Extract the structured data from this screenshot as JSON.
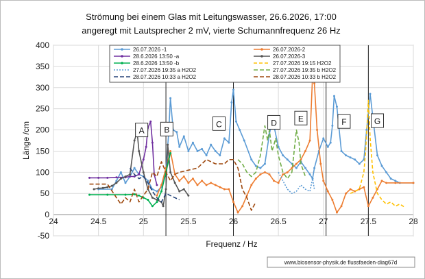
{
  "chart_data": {
    "type": "line",
    "title_line1": "Strömung bei einem Glas mit  Leitungswasser, 26.6.2026, 17:00",
    "title_line2": "angeregt mit Lautsprecher 2 mV,  vierte Schumannfrequenz  26 Hz",
    "xlabel": "Frequenz / Hz",
    "ylabel": "Länge /cm",
    "xlim": [
      24,
      28
    ],
    "ylim": [
      -50,
      400
    ],
    "xticks": [
      "24",
      "24.5",
      "25",
      "25.5",
      "26",
      "26.5",
      "27",
      "27.5",
      "28"
    ],
    "yticks": [
      "-50",
      "0",
      "50",
      "100",
      "150",
      "200",
      "250",
      "300",
      "350",
      "400"
    ],
    "grid": true,
    "legend_position": "top-inside",
    "credit": "www.biosensor-physik.de  flussfaeden-diag67d",
    "annotations": [
      {
        "text": "A",
        "x": 24.98,
        "y": 200
      },
      {
        "text": "B",
        "x": 25.26,
        "y": 202
      },
      {
        "text": "C",
        "x": 25.84,
        "y": 215
      },
      {
        "text": "D",
        "x": 26.45,
        "y": 218
      },
      {
        "text": "E",
        "x": 26.75,
        "y": 228
      },
      {
        "text": "F",
        "x": 27.23,
        "y": 220
      },
      {
        "text": "G",
        "x": 27.6,
        "y": 222
      }
    ],
    "vlines": [
      25.25,
      26,
      27.03,
      27.5
    ],
    "series": [
      {
        "name": "26.07.2026 -1",
        "color": "#5b9bd5",
        "dash": "",
        "marker": "dot",
        "points": [
          [
            24.5,
            60
          ],
          [
            24.65,
            60
          ],
          [
            24.7,
            80
          ],
          [
            24.75,
            100
          ],
          [
            24.8,
            75
          ],
          [
            24.85,
            90
          ],
          [
            24.9,
            110
          ],
          [
            24.95,
            95
          ],
          [
            25.0,
            90
          ],
          [
            25.05,
            80
          ],
          [
            25.1,
            60
          ],
          [
            25.15,
            55
          ],
          [
            25.2,
            65
          ],
          [
            25.25,
            110
          ],
          [
            25.28,
            190
          ],
          [
            25.3,
            275
          ],
          [
            25.33,
            200
          ],
          [
            25.37,
            195
          ],
          [
            25.4,
            160
          ],
          [
            25.45,
            185
          ],
          [
            25.5,
            150
          ],
          [
            25.55,
            170
          ],
          [
            25.6,
            150
          ],
          [
            25.65,
            155
          ],
          [
            25.7,
            140
          ],
          [
            25.75,
            165
          ],
          [
            25.8,
            150
          ],
          [
            25.85,
            140
          ],
          [
            25.9,
            180
          ],
          [
            25.95,
            170
          ],
          [
            25.98,
            265
          ],
          [
            26.0,
            295
          ],
          [
            26.03,
            220
          ],
          [
            26.07,
            200
          ],
          [
            26.12,
            175
          ],
          [
            26.2,
            130
          ],
          [
            26.25,
            115
          ],
          [
            26.3,
            110
          ],
          [
            26.35,
            120
          ],
          [
            26.4,
            190
          ],
          [
            26.43,
            220
          ],
          [
            26.45,
            210
          ],
          [
            26.5,
            160
          ],
          [
            26.55,
            140
          ],
          [
            26.6,
            130
          ],
          [
            26.65,
            120
          ],
          [
            26.7,
            110
          ],
          [
            26.75,
            125
          ],
          [
            26.8,
            110
          ],
          [
            26.85,
            95
          ],
          [
            26.88,
            85
          ],
          [
            26.9,
            110
          ],
          [
            26.95,
            150
          ],
          [
            27.0,
            180
          ],
          [
            27.05,
            160
          ],
          [
            27.08,
            170
          ],
          [
            27.1,
            210
          ],
          [
            27.12,
            280
          ],
          [
            27.15,
            255
          ],
          [
            27.2,
            150
          ],
          [
            27.25,
            140
          ],
          [
            27.3,
            135
          ],
          [
            27.35,
            130
          ],
          [
            27.4,
            120
          ],
          [
            27.45,
            130
          ],
          [
            27.48,
            200
          ],
          [
            27.52,
            285
          ],
          [
            27.55,
            230
          ],
          [
            27.6,
            140
          ],
          [
            27.65,
            115
          ],
          [
            27.7,
            100
          ],
          [
            27.75,
            85
          ],
          [
            27.8,
            80
          ],
          [
            27.85,
            75
          ],
          [
            28.0,
            75
          ]
        ]
      },
      {
        "name": "26.07.2026-2",
        "color": "#ed7d31",
        "dash": "",
        "marker": "dot",
        "points": [
          [
            25.15,
            45
          ],
          [
            25.2,
            70
          ],
          [
            25.25,
            110
          ],
          [
            25.3,
            150
          ],
          [
            25.35,
            95
          ],
          [
            25.4,
            80
          ],
          [
            25.45,
            90
          ],
          [
            25.5,
            75
          ],
          [
            25.55,
            85
          ],
          [
            25.6,
            70
          ],
          [
            25.65,
            80
          ],
          [
            25.7,
            70
          ],
          [
            25.75,
            75
          ],
          [
            25.8,
            70
          ],
          [
            25.85,
            65
          ],
          [
            25.9,
            60
          ],
          [
            25.95,
            60
          ],
          [
            26.0,
            30
          ],
          [
            26.05,
            5
          ],
          [
            26.1,
            20
          ],
          [
            26.15,
            45
          ],
          [
            26.2,
            70
          ],
          [
            26.25,
            85
          ],
          [
            26.3,
            95
          ],
          [
            26.35,
            100
          ],
          [
            26.4,
            95
          ],
          [
            26.45,
            80
          ],
          [
            26.5,
            75
          ],
          [
            26.55,
            95
          ],
          [
            26.6,
            100
          ],
          [
            26.65,
            110
          ],
          [
            26.7,
            120
          ],
          [
            26.75,
            130
          ],
          [
            26.8,
            150
          ],
          [
            26.85,
            175
          ],
          [
            26.88,
            330
          ],
          [
            26.9,
            310
          ],
          [
            26.93,
            200
          ],
          [
            26.97,
            120
          ],
          [
            27.0,
            80
          ],
          [
            27.05,
            55
          ],
          [
            27.1,
            35
          ],
          [
            27.15,
            5
          ],
          [
            27.2,
            20
          ],
          [
            27.25,
            50
          ],
          [
            27.3,
            60
          ],
          [
            27.35,
            55
          ],
          [
            27.4,
            60
          ],
          [
            27.45,
            65
          ],
          [
            27.5,
            20
          ],
          [
            27.55,
            40
          ],
          [
            27.6,
            60
          ],
          [
            27.65,
            80
          ],
          [
            27.7,
            75
          ],
          [
            27.8,
            75
          ],
          [
            28.0,
            75
          ]
        ]
      },
      {
        "name": "28.6.2026 13:50 -a",
        "color": "#7030a0",
        "dash": "",
        "marker": "dot",
        "points": [
          [
            24.4,
            87
          ],
          [
            24.5,
            87
          ],
          [
            24.6,
            87
          ],
          [
            24.7,
            88
          ],
          [
            24.8,
            88
          ],
          [
            24.85,
            90
          ],
          [
            24.9,
            90
          ],
          [
            24.95,
            95
          ],
          [
            25.0,
            130
          ],
          [
            25.03,
            160
          ],
          [
            25.05,
            205
          ],
          [
            25.08,
            220
          ],
          [
            25.1,
            170
          ],
          [
            25.12,
            95
          ],
          [
            25.15,
            70
          ]
        ]
      },
      {
        "name": "26.07.2026-3",
        "color": "#555555",
        "dash": "",
        "marker": "dot",
        "points": [
          [
            24.45,
            60
          ],
          [
            24.5,
            62
          ],
          [
            24.55,
            63
          ],
          [
            24.6,
            65
          ],
          [
            24.65,
            68
          ],
          [
            24.7,
            75
          ],
          [
            24.75,
            85
          ],
          [
            24.8,
            90
          ],
          [
            24.85,
            95
          ],
          [
            24.9,
            175
          ],
          [
            24.93,
            195
          ],
          [
            24.95,
            150
          ],
          [
            25.0,
            100
          ],
          [
            25.05,
            60
          ],
          [
            25.1,
            40
          ],
          [
            25.15,
            35
          ],
          [
            25.2,
            30
          ],
          [
            25.22,
            20
          ],
          [
            25.25,
            60
          ],
          [
            25.27,
            165
          ],
          [
            25.3,
            100
          ],
          [
            25.35,
            75
          ],
          [
            25.4,
            55
          ],
          [
            25.45,
            60
          ],
          [
            25.5,
            45
          ]
        ]
      },
      {
        "name": "28.6.2026 13:50 -b",
        "color": "#00b050",
        "dash": "",
        "marker": "dot",
        "points": [
          [
            24.4,
            47
          ],
          [
            24.6,
            47
          ],
          [
            24.8,
            47
          ],
          [
            24.9,
            48
          ],
          [
            24.95,
            45
          ],
          [
            25.0,
            40
          ],
          [
            25.05,
            35
          ],
          [
            25.1,
            20
          ],
          [
            25.15,
            30
          ],
          [
            25.2,
            55
          ],
          [
            25.25,
            100
          ],
          [
            25.3,
            145
          ]
        ]
      },
      {
        "name": "27.07.2026  19:15 H2O2",
        "color": "#ffc000",
        "dash": "5,3",
        "marker": "",
        "points": [
          [
            27.3,
            50
          ],
          [
            27.35,
            55
          ],
          [
            27.4,
            60
          ],
          [
            27.45,
            100
          ],
          [
            27.47,
            150
          ],
          [
            27.5,
            270
          ],
          [
            27.52,
            180
          ],
          [
            27.55,
            100
          ],
          [
            27.6,
            50
          ],
          [
            27.65,
            35
          ],
          [
            27.7,
            25
          ],
          [
            27.75,
            30
          ],
          [
            27.8,
            20
          ],
          [
            27.85,
            25
          ],
          [
            27.9,
            18
          ]
        ]
      },
      {
        "name": "27.07.2026  19:35 a H2O2",
        "color": "#5b9bd5",
        "dash": "2,2",
        "marker": "",
        "points": [
          [
            26.5,
            100
          ],
          [
            26.55,
            80
          ],
          [
            26.6,
            60
          ],
          [
            26.65,
            50
          ],
          [
            26.7,
            55
          ],
          [
            26.75,
            70
          ],
          [
            26.8,
            60
          ],
          [
            26.85,
            55
          ],
          [
            26.88,
            85
          ],
          [
            26.9,
            60
          ]
        ]
      },
      {
        "name": "27.07.2026  19:35 b H2O2",
        "color": "#70ad47",
        "dash": "6,3",
        "marker": "",
        "points": [
          [
            26.05,
            130
          ],
          [
            26.1,
            120
          ],
          [
            26.15,
            100
          ],
          [
            26.2,
            90
          ],
          [
            26.25,
            100
          ],
          [
            26.3,
            140
          ],
          [
            26.35,
            210
          ],
          [
            26.38,
            175
          ],
          [
            26.4,
            200
          ],
          [
            26.43,
            150
          ],
          [
            26.47,
            180
          ],
          [
            26.5,
            140
          ],
          [
            26.55,
            100
          ],
          [
            26.6,
            85
          ],
          [
            26.65,
            100
          ],
          [
            26.7,
            200
          ],
          [
            26.73,
            170
          ],
          [
            26.75,
            120
          ],
          [
            26.8,
            90
          ]
        ]
      },
      {
        "name": "28.07.2026  10:33 a  H2O2",
        "color": "#264478",
        "dash": "6,3",
        "marker": "",
        "points": [
          [
            24.85,
            110
          ],
          [
            24.9,
            95
          ],
          [
            24.95,
            85
          ],
          [
            25.0,
            90
          ],
          [
            25.05,
            75
          ],
          [
            25.1,
            55
          ],
          [
            25.15,
            40
          ],
          [
            25.2,
            30
          ],
          [
            25.25,
            50
          ],
          [
            25.3,
            45
          ],
          [
            25.35,
            40
          ],
          [
            25.4,
            35
          ]
        ]
      },
      {
        "name": "28.07.2026  10:33 b  H2O2",
        "color": "#9e480e",
        "dash": "6,3",
        "marker": "",
        "points": [
          [
            24.4,
            72
          ],
          [
            24.6,
            72
          ],
          [
            24.7,
            40
          ],
          [
            24.75,
            25
          ],
          [
            24.8,
            40
          ],
          [
            24.85,
            30
          ],
          [
            24.9,
            60
          ],
          [
            24.95,
            30
          ],
          [
            25.0,
            45
          ],
          [
            25.05,
            60
          ],
          [
            25.1,
            100
          ],
          [
            25.15,
            90
          ],
          [
            25.2,
            125
          ],
          [
            25.25,
            100
          ],
          [
            25.3,
            80
          ],
          [
            25.35,
            95
          ],
          [
            25.4,
            100
          ],
          [
            25.5,
            105
          ],
          [
            25.6,
            110
          ],
          [
            25.7,
            130
          ],
          [
            25.8,
            120
          ],
          [
            25.9,
            120
          ],
          [
            25.95,
            130
          ],
          [
            26.0,
            130
          ],
          [
            26.05,
            110
          ],
          [
            26.1,
            60
          ],
          [
            26.15,
            40
          ],
          [
            26.2,
            10
          ],
          [
            26.25,
            30
          ]
        ]
      }
    ]
  }
}
